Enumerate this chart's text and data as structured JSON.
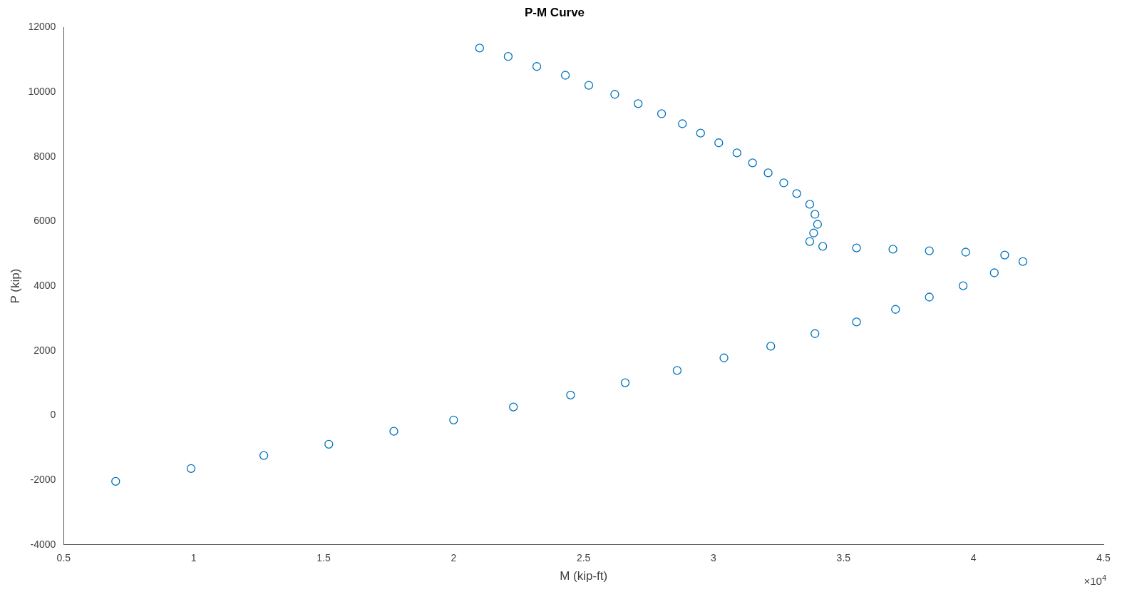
{
  "chart_data": {
    "type": "scatter",
    "title": "P-M Curve",
    "xlabel": "M (kip-ft)",
    "ylabel": "P (kip)",
    "annotations": [
      "×10$^{4}$"
    ],
    "xlim": [
      0.5,
      4.5
    ],
    "xticks": [
      0.5,
      1,
      1.5,
      2,
      2.5,
      3,
      3.5,
      4,
      4.5
    ],
    "ylim": [
      -4000,
      12000
    ],
    "yticks": [
      -4000,
      -2000,
      0,
      2000,
      4000,
      6000,
      8000,
      10000,
      12000
    ],
    "grid": false,
    "legend": false,
    "marker": "circle",
    "series": [
      {
        "color": "#0072bd",
        "x": [
          2.1,
          2.21,
          2.32,
          2.43,
          2.52,
          2.62,
          2.71,
          2.8,
          2.88,
          2.95,
          3.02,
          3.09,
          3.15,
          3.21,
          3.27,
          3.32,
          3.37,
          3.39,
          3.4,
          3.385,
          3.37,
          3.42,
          3.55,
          3.69,
          3.83,
          3.97,
          4.12,
          4.19,
          4.08,
          3.96,
          3.83,
          3.7,
          3.55,
          3.39,
          3.22,
          3.04,
          2.86,
          2.66,
          2.45,
          2.23,
          2.0,
          1.77,
          1.52,
          1.27,
          0.99,
          0.7
        ],
        "values": [
          11360,
          11100,
          10790,
          10520,
          10210,
          9930,
          9640,
          9330,
          9020,
          8730,
          8430,
          8120,
          7810,
          7500,
          7190,
          6860,
          6530,
          6220,
          5910,
          5640,
          5380,
          5230,
          5180,
          5140,
          5090,
          5050,
          4960,
          4760,
          4410,
          4010,
          3660,
          3280,
          2890,
          2530,
          2140,
          1780,
          1390,
          1010,
          630,
          260,
          -140,
          -490,
          -890,
          -1240,
          -1640,
          -2040
        ]
      }
    ]
  }
}
